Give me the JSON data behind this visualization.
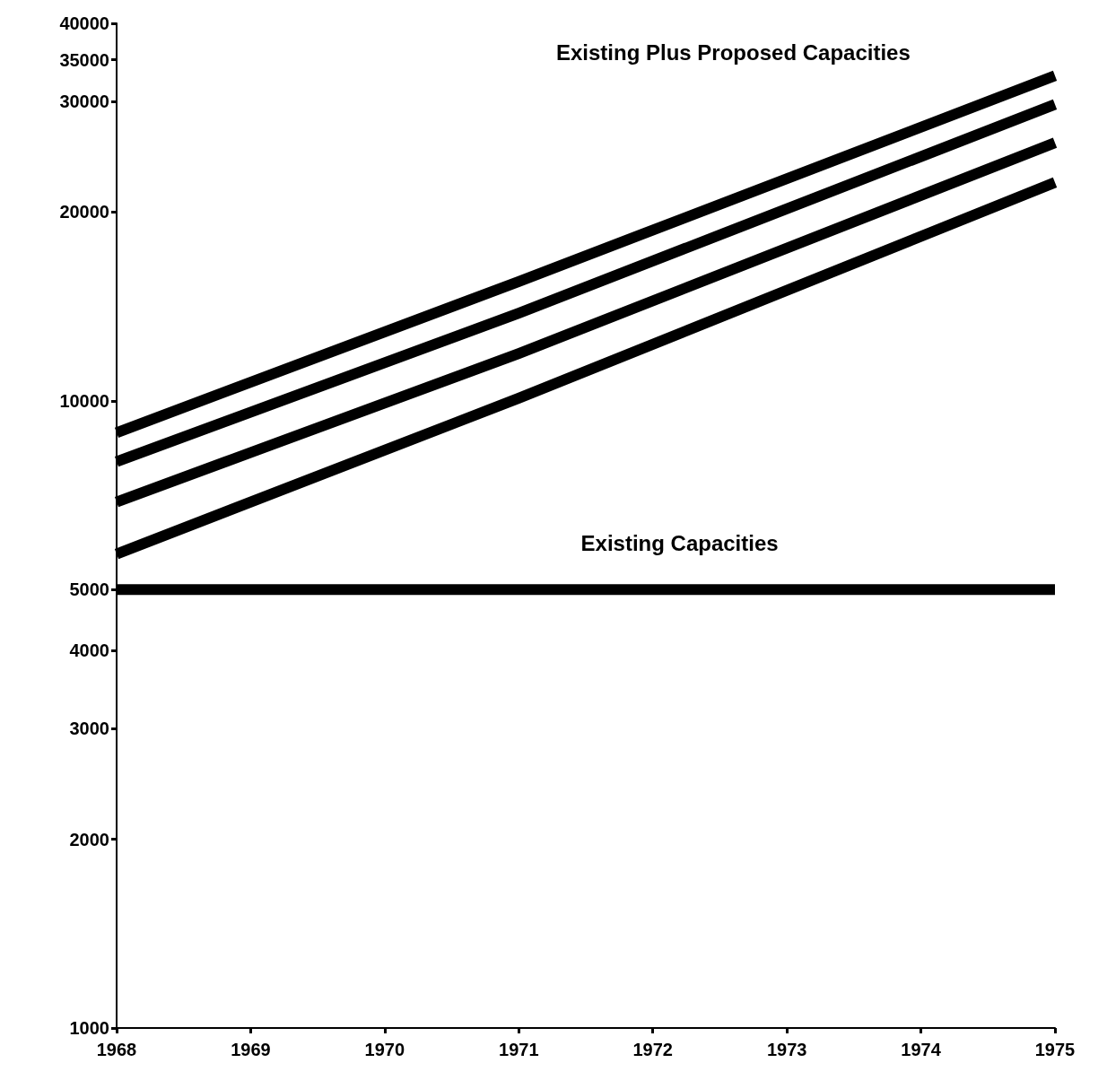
{
  "chart_data": {
    "type": "line",
    "log": "y",
    "x": [
      1968,
      1971,
      1975
    ],
    "xlim": [
      1968,
      1975
    ],
    "xticks": [
      1968,
      1969,
      1970,
      1971,
      1972,
      1973,
      1974,
      1975
    ],
    "ylim": [
      1000,
      40000
    ],
    "yticks": [
      1000,
      2000,
      3000,
      4000,
      5000,
      10000,
      20000,
      30000,
      35000,
      40000
    ],
    "series": [
      {
        "color": "#000000",
        "values": [
          8900,
          15500,
          33000
        ]
      },
      {
        "color": "#000000",
        "values": [
          8000,
          13800,
          29700
        ]
      },
      {
        "color": "#000000",
        "values": [
          6900,
          11900,
          25800
        ]
      },
      {
        "color": "#000000",
        "values": [
          5700,
          10100,
          22300
        ]
      },
      {
        "color": "#000000",
        "x": [
          1968,
          1975
        ],
        "values": [
          5000,
          5000
        ]
      }
    ],
    "annotations": [
      "Existing Plus Proposed Capacities",
      "Existing Capacities"
    ],
    "grid": false,
    "line_style": "solid"
  }
}
